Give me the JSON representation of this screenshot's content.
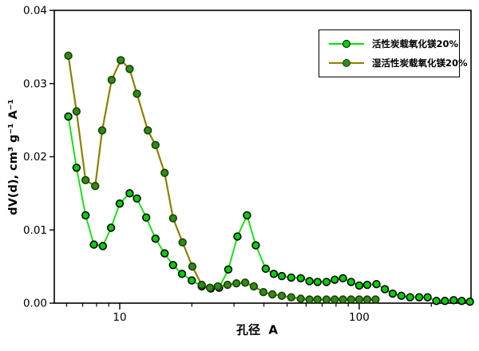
{
  "chart_data": {
    "type": "line",
    "title": "",
    "xlabel": "孔径  A",
    "ylabel": "dV(d), cm³ g⁻¹ A⁻¹",
    "x_scale": "log",
    "xlim": [
      5.33,
      293
    ],
    "ylim": [
      0,
      0.04
    ],
    "grid": false,
    "legend_position": "top-right",
    "x_major_ticks": [
      {
        "value": 10,
        "label": "10"
      },
      {
        "value": 100,
        "label": "100"
      }
    ],
    "x_minor_ticks": [
      6,
      7,
      8,
      9,
      20,
      30,
      40,
      50,
      60,
      70,
      80,
      90,
      200
    ],
    "y_ticks": [
      {
        "value": 0.0,
        "label": "0.00"
      },
      {
        "value": 0.01,
        "label": "0.01"
      },
      {
        "value": 0.02,
        "label": "0.02"
      },
      {
        "value": 0.03,
        "label": "0.03"
      },
      {
        "value": 0.04,
        "label": "0.04"
      }
    ],
    "series": [
      {
        "name": "活性炭载氧化镁20%",
        "line_color": "#00E400",
        "line_width": 1.8,
        "marker_fill": "#00CF00",
        "marker_stroke": "#000000",
        "x": [
          6.1,
          6.6,
          7.2,
          7.8,
          8.5,
          9.2,
          10,
          11,
          11.8,
          12.9,
          14.1,
          15.4,
          16.7,
          18.2,
          20,
          22,
          24,
          26,
          28.4,
          31,
          34,
          37,
          40.7,
          44,
          47.5,
          52,
          57,
          62,
          67,
          73,
          79,
          85.5,
          92.5,
          100,
          108,
          118,
          128,
          138,
          150,
          163,
          178,
          193,
          210,
          228,
          248,
          268,
          290
        ],
        "y": [
          0.0255,
          0.0185,
          0.012,
          0.008,
          0.0078,
          0.0103,
          0.0136,
          0.015,
          0.0143,
          0.0117,
          0.0088,
          0.0068,
          0.0052,
          0.004,
          0.0031,
          0.0023,
          0.002,
          0.0021,
          0.0046,
          0.0091,
          0.012,
          0.0079,
          0.0047,
          0.004,
          0.0037,
          0.0035,
          0.0034,
          0.003,
          0.0029,
          0.0029,
          0.0032,
          0.0034,
          0.0029,
          0.0024,
          0.0025,
          0.0026,
          0.0019,
          0.0013,
          0.001,
          0.0008,
          0.0008,
          0.0008,
          0.0003,
          0.0003,
          0.0004,
          0.0003,
          0.0002
        ]
      },
      {
        "name": "湿活性炭载氧化镁20%",
        "line_color": "#8B8000",
        "line_width": 2.2,
        "marker_fill": "#2E8B1A",
        "marker_stroke": "#1A4000",
        "x": [
          6.1,
          6.6,
          7.2,
          7.9,
          8.45,
          9.25,
          10.1,
          11,
          11.8,
          13.1,
          14.1,
          15.4,
          16.7,
          18.3,
          20.1,
          22,
          23.8,
          25.7,
          28.2,
          30.7,
          33.4,
          36.3,
          39.8,
          43.4,
          47.5,
          52,
          57,
          62,
          67,
          73,
          79,
          85.5,
          92.5,
          100,
          108,
          117
        ],
        "y": [
          0.0338,
          0.0262,
          0.0168,
          0.016,
          0.0236,
          0.0305,
          0.0332,
          0.032,
          0.0286,
          0.0236,
          0.0216,
          0.0178,
          0.0116,
          0.0083,
          0.005,
          0.0025,
          0.0021,
          0.0023,
          0.0025,
          0.0027,
          0.0028,
          0.0023,
          0.0015,
          0.0012,
          0.001,
          0.0008,
          0.0006,
          0.0005,
          0.0005,
          0.0005,
          0.0005,
          0.0005,
          0.0005,
          0.0005,
          0.0005,
          0.0005
        ]
      }
    ]
  }
}
